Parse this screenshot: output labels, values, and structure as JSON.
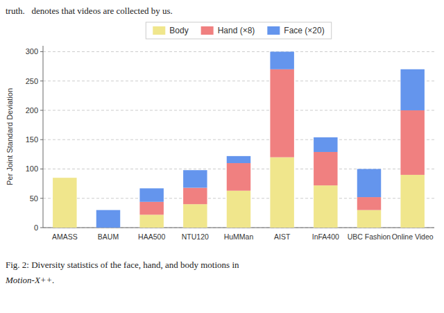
{
  "chart_data": {
    "type": "bar",
    "stacked": true,
    "categories": [
      "AMASS",
      "BAUM",
      "HAA500",
      "NTU120",
      "HuMMan",
      "AIST",
      "InFA400",
      "UBC Fashion",
      "Online Video"
    ],
    "series": [
      {
        "name": "Body",
        "color": "#f0e68c",
        "values": [
          85,
          0,
          22,
          40,
          63,
          120,
          72,
          30,
          90
        ]
      },
      {
        "name": "Hand (×8)",
        "color": "#f08080",
        "values": [
          0,
          0,
          22,
          28,
          47,
          150,
          57,
          22,
          110
        ]
      },
      {
        "name": "Face (×20)",
        "color": "#6495ed",
        "values": [
          0,
          30,
          23,
          30,
          12,
          30,
          25,
          48,
          70
        ]
      }
    ],
    "ylim": [
      0,
      310
    ],
    "yticks": [
      0,
      50,
      100,
      150,
      200,
      250,
      300
    ],
    "ylabel": "Per Joint Standard Deviation",
    "grid": true,
    "legend": "top",
    "annotations": [
      "truth.   denotes that videos are collected by us.",
      "Fig. 2: Diversity statistics of the face, hand, and body motions in",
      "Motion-X++."
    ]
  }
}
